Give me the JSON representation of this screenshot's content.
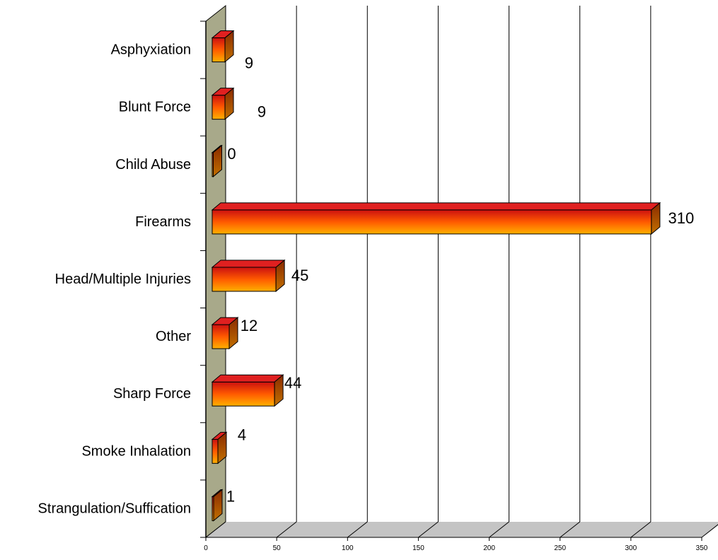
{
  "chart_data": {
    "type": "bar",
    "orientation": "horizontal",
    "three_d": true,
    "categories": [
      "Asphyxiation",
      "Blunt Force",
      "Child Abuse",
      "Firearms",
      "Head/Multiple Injuries",
      "Other",
      "Sharp Force",
      "Smoke Inhalation",
      "Strangulation/Suffication"
    ],
    "values": [
      9,
      9,
      0,
      310,
      45,
      12,
      44,
      4,
      1
    ],
    "data_labels": [
      "9",
      "9",
      "0",
      "310",
      "45",
      "12",
      "44",
      "4",
      "1"
    ],
    "xlim": [
      0,
      350
    ],
    "x_ticks": [
      "0",
      "50",
      "100",
      "150",
      "200",
      "250",
      "300",
      "350"
    ],
    "title": "",
    "xlabel": "",
    "ylabel": "",
    "grid": true,
    "legend": "none",
    "colors": {
      "bar_top": "#cc1010",
      "bar_mid": "#ff5a00",
      "bar_bottom": "#ffb000",
      "bar_side": "#b55e00",
      "bar_cap": "#e02020",
      "axis_wall": "#a8a98a",
      "floor": "#c4c4c4",
      "gridline": "#000000"
    }
  }
}
